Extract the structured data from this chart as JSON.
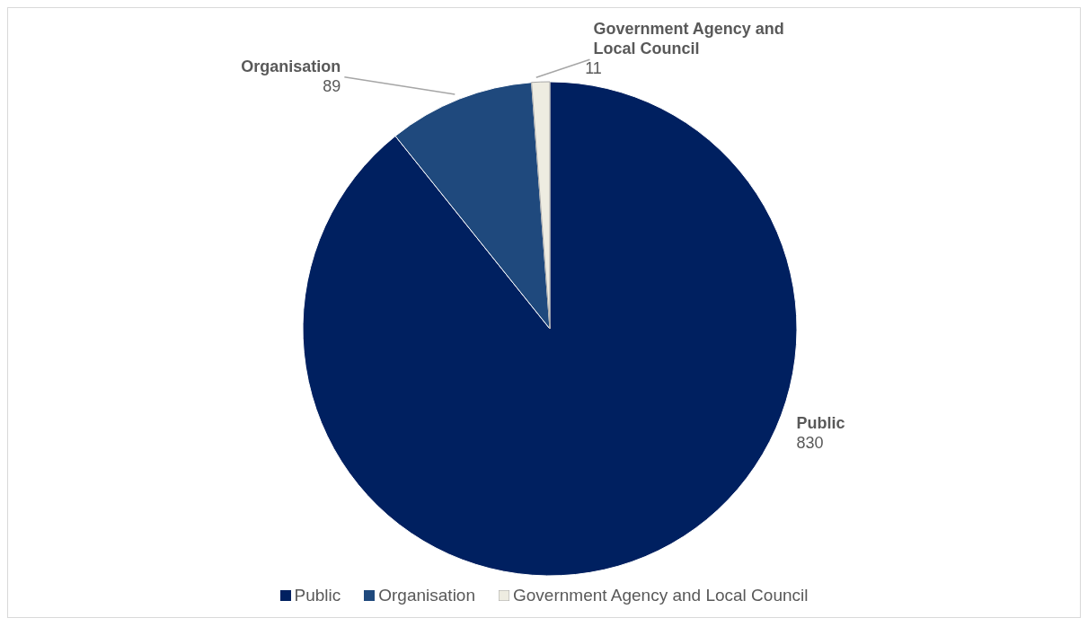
{
  "chart_data": {
    "type": "pie",
    "categories": [
      "Public",
      "Organisation",
      "Government Agency and Local Council"
    ],
    "values": [
      830,
      89,
      11
    ],
    "colors": [
      "#002060",
      "#1f497d",
      "#eeece1"
    ],
    "data_labels": true,
    "legend": "bottom"
  }
}
